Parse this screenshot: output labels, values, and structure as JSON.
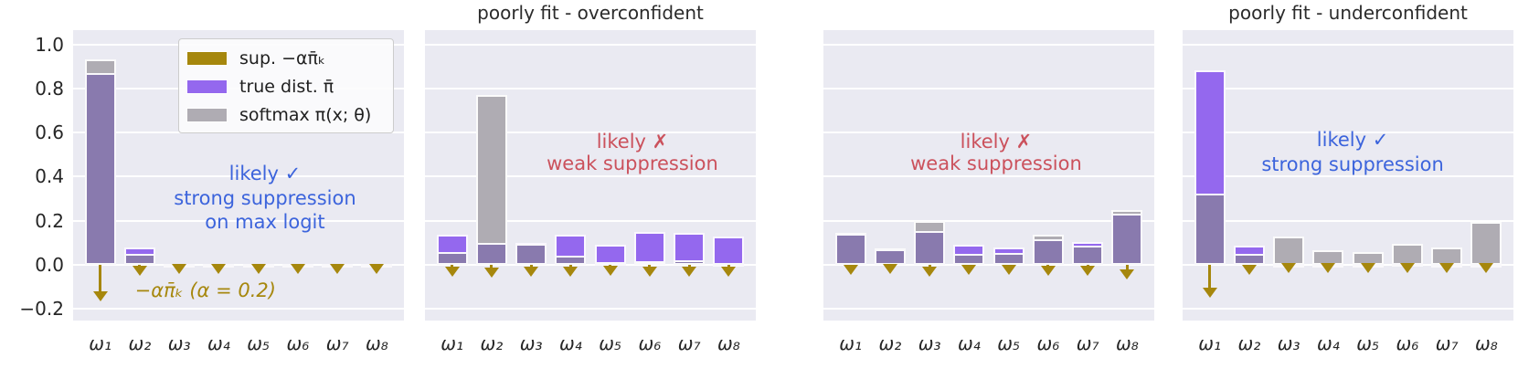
{
  "figure": {
    "y_axis": {
      "tick_labels": [
        "1.0",
        "0.8",
        "0.6",
        "0.4",
        "0.2",
        "0.0",
        "−0.2"
      ],
      "tick_values": [
        1.0,
        0.8,
        0.6,
        0.4,
        0.2,
        0.0,
        -0.2
      ]
    },
    "x_tick_labels": [
      "ω₁",
      "ω₂",
      "ω₃",
      "ω₄",
      "ω₅",
      "ω₆",
      "ω₇",
      "ω₈"
    ],
    "legend": {
      "items": [
        {
          "label": "sup. −απ̄ₖ",
          "color_key": "gold"
        },
        {
          "label": "true dist. π̄",
          "color_key": "purple"
        },
        {
          "label": "softmax π(x; θ)",
          "color_key": "grey"
        }
      ]
    },
    "colors": {
      "gold": "#a6870d",
      "purple": "#9468ee",
      "grey": "#afacb3",
      "overlap": "#897aae",
      "panel_bg": "#eaeaf2",
      "grid": "#ffffff",
      "blue": "#3c64dc",
      "red": "#cb515c",
      "tick": "#262626",
      "title": "#2b2b2b",
      "legend_bg": "rgba(252,252,253,0.88)",
      "legend_border": "#cccccc"
    }
  },
  "chart_data": [
    {
      "type": "bar",
      "title": "",
      "categories": [
        "ω₁",
        "ω₂",
        "ω₃",
        "ω₄",
        "ω₅",
        "ω₆",
        "ω₇",
        "ω₈"
      ],
      "ylim": [
        -0.25,
        1.06
      ],
      "grid": true,
      "legend_position": "upper right (panel 1 only)",
      "series": [
        {
          "name": "true dist. π̄",
          "values": [
            0.87,
            0.08,
            0.005,
            0.005,
            0.005,
            0.005,
            0.005,
            0.005
          ]
        },
        {
          "name": "softmax π(x; θ)",
          "values": [
            0.93,
            0.05,
            0.005,
            0.005,
            0.005,
            0.005,
            0.005,
            0.005
          ]
        },
        {
          "name": "sup. −απ̄ₖ (arrow depth)",
          "values": [
            -0.165,
            -0.05,
            -0.04,
            -0.04,
            -0.04,
            -0.04,
            -0.04,
            -0.04
          ]
        }
      ],
      "annotations": [
        {
          "text_lines": [
            "likely ✓",
            "strong suppression",
            "on max logit"
          ],
          "color_key": "blue",
          "cx": 0.58,
          "cy_lines": [
            157,
            184,
            210
          ],
          "italic": false
        },
        {
          "text_lines": [
            "−απ̄ₖ (α = 0.2)"
          ],
          "color_key": "gold",
          "cx": 0.4,
          "cy_lines": [
            285
          ],
          "italic": true
        }
      ],
      "show_legend": true,
      "show_y_labels": true
    },
    {
      "type": "bar",
      "title": "poorly fit - overconfident",
      "categories": [
        "ω₁",
        "ω₂",
        "ω₃",
        "ω₄",
        "ω₅",
        "ω₆",
        "ω₇",
        "ω₈"
      ],
      "ylim": [
        -0.25,
        1.06
      ],
      "grid": true,
      "series": [
        {
          "name": "true dist. π̄",
          "values": [
            0.135,
            0.1,
            0.1,
            0.135,
            0.09,
            0.148,
            0.145,
            0.127
          ]
        },
        {
          "name": "softmax π(x; θ)",
          "values": [
            0.06,
            0.77,
            0.095,
            0.04,
            0.012,
            0.015,
            0.02,
            0.01
          ]
        },
        {
          "name": "sup. −απ̄ₖ (arrow depth)",
          "values": [
            -0.055,
            -0.06,
            -0.055,
            -0.055,
            -0.05,
            -0.055,
            -0.055,
            -0.055
          ]
        }
      ],
      "annotations": [
        {
          "text_lines": [
            "likely ✗",
            "weak suppression"
          ],
          "color_key": "red",
          "cx": 0.627,
          "cy_lines": [
            122,
            146
          ],
          "italic": false
        }
      ],
      "show_legend": false,
      "show_y_labels": false
    },
    {
      "type": "bar",
      "title": "",
      "categories": [
        "ω₁",
        "ω₂",
        "ω₃",
        "ω₄",
        "ω₅",
        "ω₆",
        "ω₇",
        "ω₈"
      ],
      "ylim": [
        -0.25,
        1.06
      ],
      "grid": true,
      "series": [
        {
          "name": "true dist. π̄",
          "values": [
            0.14,
            0.072,
            0.152,
            0.09,
            0.078,
            0.118,
            0.103,
            0.23
          ]
        },
        {
          "name": "softmax π(x; θ)",
          "values": [
            0.145,
            0.076,
            0.197,
            0.048,
            0.055,
            0.138,
            0.087,
            0.248
          ]
        },
        {
          "name": "sup. −απ̄ₖ (arrow depth)",
          "values": [
            -0.045,
            -0.042,
            -0.055,
            -0.045,
            -0.045,
            -0.05,
            -0.05,
            -0.065
          ]
        }
      ],
      "annotations": [
        {
          "text_lines": [
            "likely ✗",
            "weak suppression"
          ],
          "color_key": "red",
          "cx": 0.522,
          "cy_lines": [
            122,
            146
          ],
          "italic": false
        }
      ],
      "show_legend": false,
      "show_y_labels": false
    },
    {
      "type": "bar",
      "title": "poorly fit - underconfident",
      "categories": [
        "ω₁",
        "ω₂",
        "ω₃",
        "ω₄",
        "ω₅",
        "ω₆",
        "ω₇",
        "ω₈"
      ],
      "ylim": [
        -0.25,
        1.06
      ],
      "grid": true,
      "series": [
        {
          "name": "true dist. π̄",
          "values": [
            0.88,
            0.085,
            0.006,
            0.004,
            0.004,
            0.008,
            0.005,
            0.004
          ]
        },
        {
          "name": "softmax π(x; θ)",
          "values": [
            0.325,
            0.05,
            0.13,
            0.066,
            0.058,
            0.097,
            0.08,
            0.193
          ]
        },
        {
          "name": "sup. −απ̄ₖ (arrow depth)",
          "values": [
            -0.15,
            -0.045,
            -0.038,
            -0.038,
            -0.038,
            -0.038,
            -0.038,
            -0.038
          ]
        }
      ],
      "annotations": [
        {
          "text_lines": [
            "likely ✓",
            "strong suppression"
          ],
          "color_key": "blue",
          "cx": 0.514,
          "cy_lines": [
            120,
            147
          ],
          "italic": false
        }
      ],
      "show_legend": false,
      "show_y_labels": false
    }
  ]
}
